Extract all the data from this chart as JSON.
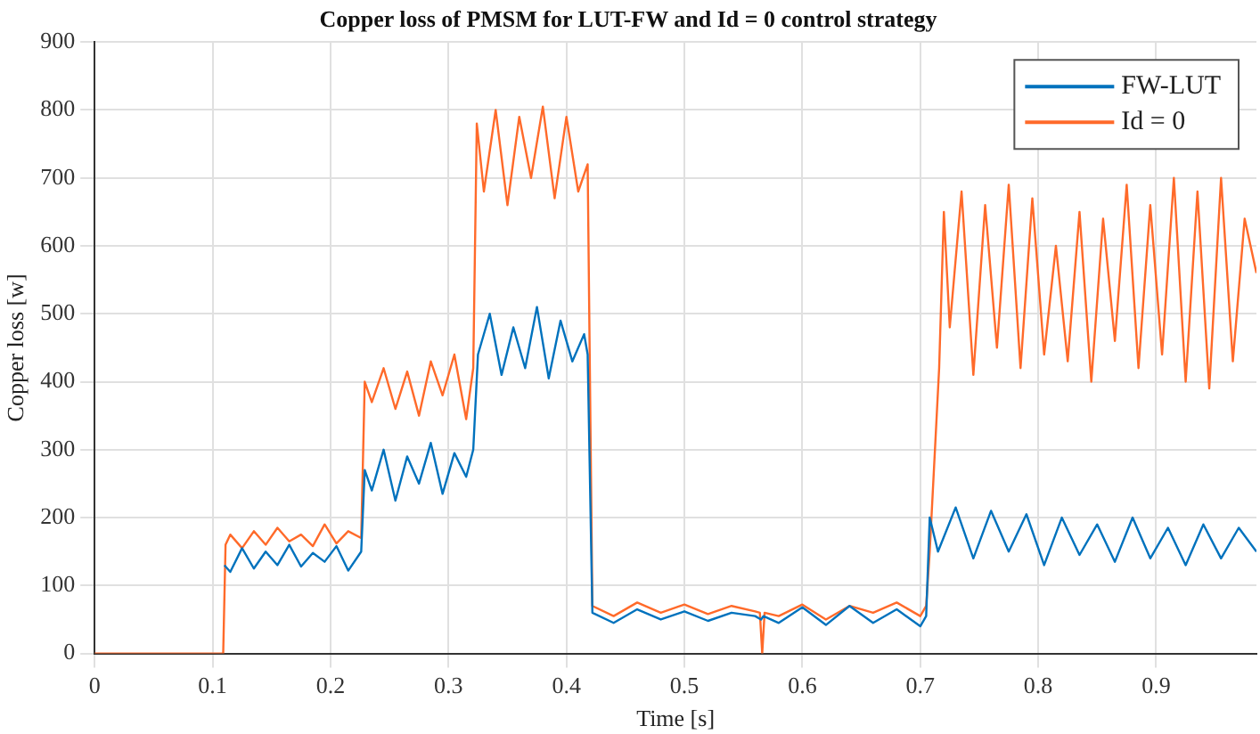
{
  "chart_data": {
    "type": "line",
    "title": "Copper loss of PMSM for LUT-FW and Id = 0 control strategy",
    "xlabel": "Time [s]",
    "ylabel": "Copper loss [w]",
    "xlim": [
      0,
      0.985
    ],
    "xticks": [
      0,
      0.1,
      0.2,
      0.3,
      0.4,
      0.5,
      0.6,
      0.7,
      0.8,
      0.9
    ],
    "ylim": [
      0,
      900
    ],
    "yticks": [
      0,
      100,
      200,
      300,
      400,
      500,
      600,
      700,
      800,
      900
    ],
    "grid": true,
    "legend": "top right",
    "marker": "none",
    "line_style": "solid",
    "series": [
      {
        "name": "FW-LUT",
        "color": "#0072bd",
        "x": [
          0.11,
          0.115,
          0.125,
          0.135,
          0.145,
          0.155,
          0.165,
          0.175,
          0.185,
          0.195,
          0.205,
          0.215,
          0.226,
          0.229,
          0.235,
          0.245,
          0.255,
          0.265,
          0.275,
          0.285,
          0.295,
          0.305,
          0.315,
          0.321,
          0.325,
          0.335,
          0.345,
          0.355,
          0.365,
          0.375,
          0.385,
          0.395,
          0.405,
          0.415,
          0.418,
          0.422,
          0.44,
          0.46,
          0.48,
          0.5,
          0.52,
          0.54,
          0.56,
          0.565,
          0.567,
          0.58,
          0.6,
          0.62,
          0.64,
          0.66,
          0.68,
          0.7,
          0.705,
          0.708,
          0.715,
          0.73,
          0.745,
          0.76,
          0.775,
          0.79,
          0.805,
          0.82,
          0.835,
          0.85,
          0.865,
          0.88,
          0.895,
          0.91,
          0.925,
          0.94,
          0.955,
          0.97,
          0.985
        ],
        "values": [
          130,
          120,
          155,
          125,
          150,
          130,
          160,
          128,
          148,
          135,
          158,
          122,
          150,
          270,
          240,
          300,
          225,
          290,
          250,
          310,
          235,
          295,
          260,
          300,
          440,
          500,
          410,
          480,
          420,
          510,
          405,
          490,
          430,
          470,
          440,
          60,
          45,
          65,
          50,
          62,
          48,
          60,
          55,
          50,
          55,
          45,
          68,
          42,
          70,
          45,
          65,
          40,
          55,
          200,
          150,
          215,
          140,
          210,
          150,
          205,
          130,
          200,
          145,
          190,
          135,
          200,
          140,
          185,
          130,
          190,
          140,
          185,
          150
        ]
      },
      {
        "name": "Id = 0",
        "color": "#ff6a2a",
        "x": [
          0,
          0.109,
          0.111,
          0.115,
          0.125,
          0.135,
          0.145,
          0.155,
          0.165,
          0.175,
          0.185,
          0.195,
          0.205,
          0.215,
          0.226,
          0.229,
          0.235,
          0.245,
          0.255,
          0.265,
          0.275,
          0.285,
          0.295,
          0.305,
          0.315,
          0.321,
          0.324,
          0.33,
          0.34,
          0.35,
          0.36,
          0.37,
          0.38,
          0.39,
          0.4,
          0.41,
          0.418,
          0.422,
          0.44,
          0.46,
          0.48,
          0.5,
          0.52,
          0.54,
          0.56,
          0.564,
          0.566,
          0.568,
          0.58,
          0.6,
          0.62,
          0.64,
          0.66,
          0.68,
          0.7,
          0.705,
          0.708,
          0.716,
          0.72,
          0.725,
          0.735,
          0.745,
          0.755,
          0.765,
          0.775,
          0.785,
          0.795,
          0.805,
          0.815,
          0.825,
          0.835,
          0.845,
          0.855,
          0.865,
          0.875,
          0.885,
          0.895,
          0.905,
          0.915,
          0.925,
          0.935,
          0.945,
          0.955,
          0.965,
          0.975,
          0.985
        ],
        "values": [
          0,
          0,
          160,
          175,
          155,
          180,
          160,
          185,
          165,
          175,
          158,
          190,
          162,
          180,
          170,
          400,
          370,
          420,
          360,
          415,
          350,
          430,
          380,
          440,
          345,
          420,
          780,
          680,
          800,
          660,
          790,
          700,
          805,
          670,
          790,
          680,
          720,
          70,
          55,
          75,
          60,
          72,
          58,
          70,
          62,
          60,
          0,
          60,
          55,
          72,
          50,
          70,
          60,
          75,
          55,
          70,
          150,
          420,
          650,
          480,
          680,
          410,
          660,
          450,
          690,
          420,
          670,
          440,
          600,
          430,
          650,
          400,
          640,
          460,
          690,
          420,
          660,
          440,
          700,
          400,
          680,
          390,
          700,
          430,
          640,
          560
        ]
      }
    ]
  }
}
